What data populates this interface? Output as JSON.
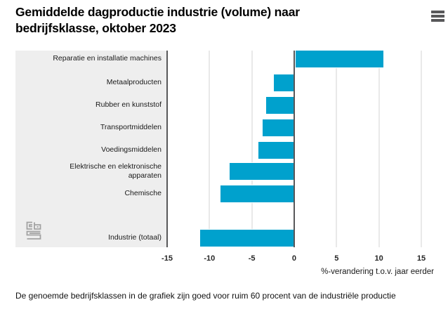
{
  "header": {
    "title": "Gemiddelde dagproductie industrie (volume) naar bedrijfsklasse, oktober 2023"
  },
  "menu": {
    "icon": "hamburger-menu-icon"
  },
  "chart_data": {
    "type": "bar",
    "orientation": "horizontal",
    "title": "Gemiddelde dagproductie industrie (volume) naar bedrijfsklasse, oktober 2023",
    "categories": [
      "Reparatie en installatie machines",
      "Metaalproducten",
      "Rubber en kunststof",
      "Transportmiddelen",
      "Voedingsmiddelen",
      "Elektrische en elektronische apparaten",
      "Chemische",
      "Industrie (totaal)"
    ],
    "values": [
      10.4,
      -2.4,
      -3.3,
      -3.7,
      -4.2,
      -7.6,
      -8.7,
      -11.1
    ],
    "xlabel": "%-verandering t.o.v. jaar eerder",
    "xticks": [
      -15,
      -10,
      -5,
      0,
      5,
      10,
      15
    ],
    "xlim": [
      -15,
      15.8
    ],
    "grid": true,
    "legend": "none",
    "colors": {
      "bar": "#00a1cd",
      "panel_bg": "#eeeeee",
      "grid": "#e9e9e9",
      "axis_line": "#58585a",
      "text": "#1a1a1a"
    }
  },
  "logo": {
    "icon": "cbs-logo"
  },
  "footer": {
    "note": "De genoemde bedrijfsklassen in de grafiek zijn goed voor ruim 60 procent van de industriële productie"
  }
}
